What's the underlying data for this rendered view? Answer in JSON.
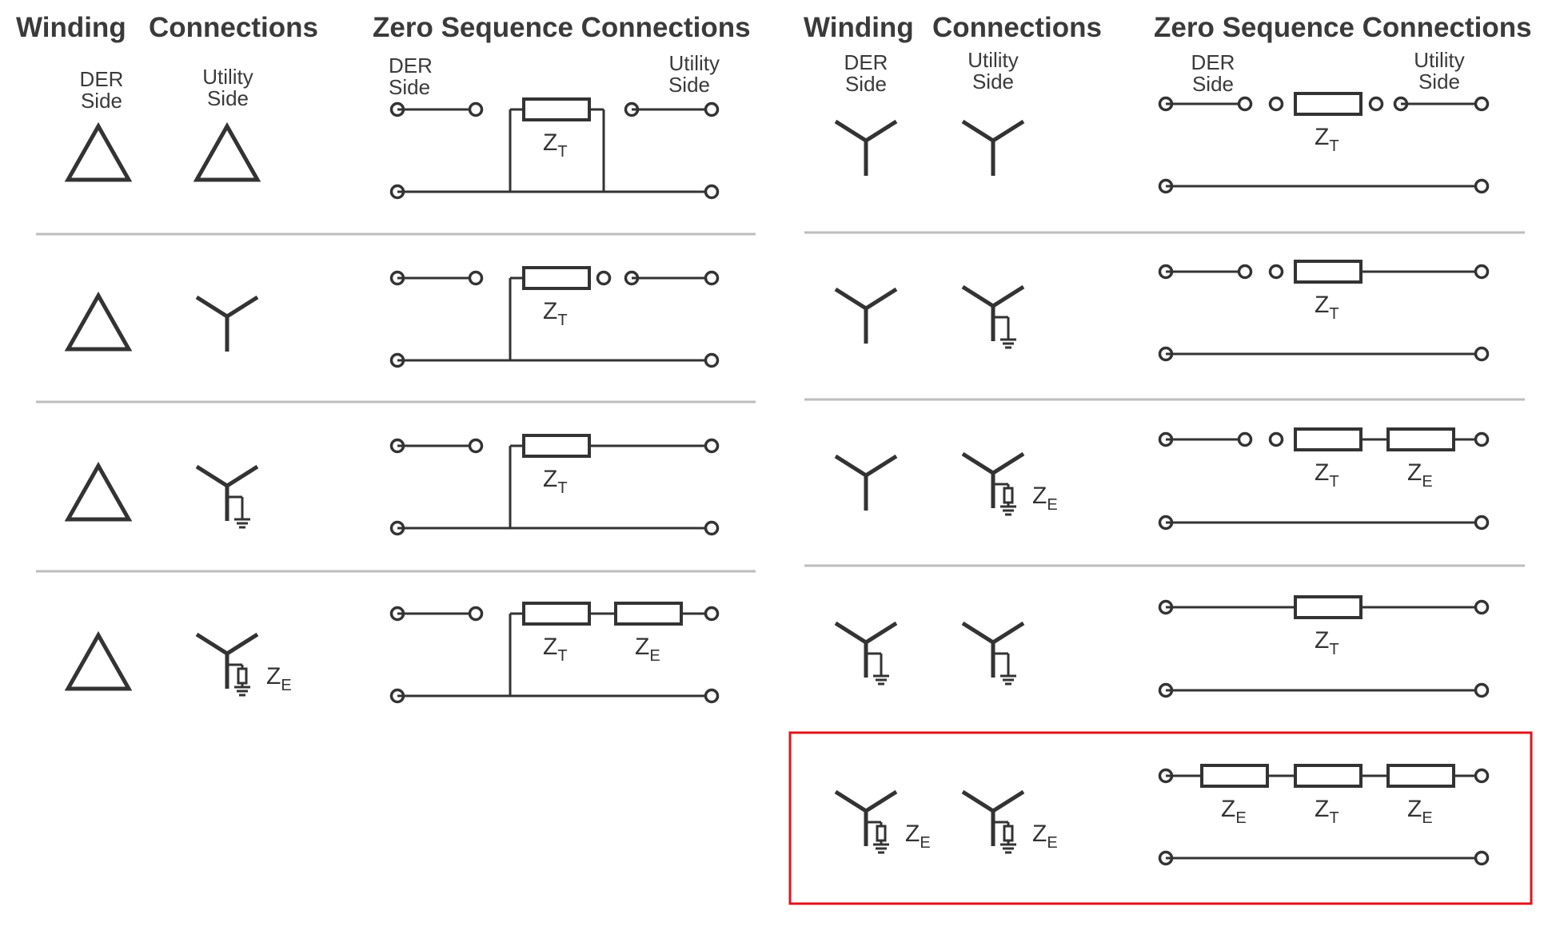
{
  "headers": {
    "winding": "Winding",
    "connections": "Connections",
    "zero_sequence": "Zero Sequence Connections"
  },
  "side_labels": {
    "der": "DER\nSide",
    "utility": "Utility\nSide"
  },
  "impedances": {
    "z": "Z",
    "t_sub": "T",
    "e_sub": "E"
  },
  "colors": {
    "line": "#333333",
    "separator": "#bdbdbd",
    "highlight": "#e0141b"
  },
  "highlighted_case": "Yg(ZE)-Yg(ZE)",
  "cases": [
    {
      "id": "delta-delta",
      "der": "delta",
      "utility": "delta"
    },
    {
      "id": "delta-wye",
      "der": "delta",
      "utility": "wye"
    },
    {
      "id": "delta-wye-grounded",
      "der": "delta",
      "utility": "wye-grounded"
    },
    {
      "id": "delta-wye-grounded-ze",
      "der": "delta",
      "utility": "wye-grounded-ze"
    },
    {
      "id": "wye-wye",
      "der": "wye",
      "utility": "wye"
    },
    {
      "id": "wye-wye-grounded",
      "der": "wye",
      "utility": "wye-grounded"
    },
    {
      "id": "wye-wye-grounded-ze",
      "der": "wye",
      "utility": "wye-grounded-ze"
    },
    {
      "id": "wye-grounded-wye-grounded",
      "der": "wye-grounded",
      "utility": "wye-grounded"
    },
    {
      "id": "wye-grounded-ze-wye-grounded-ze",
      "der": "wye-grounded-ze",
      "utility": "wye-grounded-ze"
    }
  ]
}
